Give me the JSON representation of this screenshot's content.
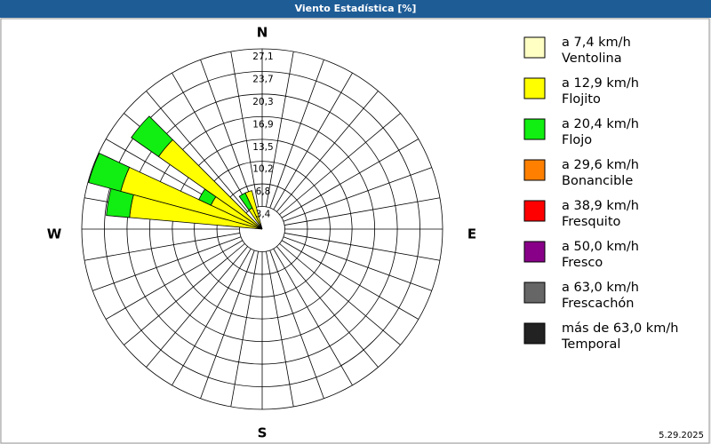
{
  "chart_data": {
    "type": "windrose",
    "title": "Viento Estadística [%]",
    "date": "5.29.2025",
    "compass": [
      "N",
      "E",
      "S",
      "W"
    ],
    "rlim": [
      0,
      27.1
    ],
    "rticks": [
      {
        "value": 3.4,
        "label": "3,4"
      },
      {
        "value": 6.8,
        "label": "6,8"
      },
      {
        "value": 10.2,
        "label": "10,2"
      },
      {
        "value": 13.5,
        "label": "13,5"
      },
      {
        "value": 16.9,
        "label": "16,9"
      },
      {
        "value": 20.3,
        "label": "20,3"
      },
      {
        "value": 23.7,
        "label": "23,7"
      },
      {
        "value": 27.1,
        "label": "27,1"
      }
    ],
    "directions": [
      280,
      290,
      300,
      310,
      330,
      340
    ],
    "series": [
      {
        "name": "a 7,4 km/h",
        "description": "Ventolina",
        "color": "#ffffc4",
        "values": [
          0,
          0,
          0,
          0,
          0,
          0
        ]
      },
      {
        "name": "a 12,9 km/h",
        "description": "Flojito",
        "color": "#ffff00",
        "values": [
          20,
          22,
          8.5,
          19,
          3.5,
          6
        ]
      },
      {
        "name": "a 20,4 km/h",
        "description": "Flojo",
        "color": "#11ee11",
        "values": [
          3.5,
          5,
          2,
          5,
          2.5,
          0
        ]
      },
      {
        "name": "a 29,6 km/h",
        "description": "Bonancible",
        "color": "#ff8000",
        "values": [
          0,
          0,
          0,
          0,
          0,
          0
        ]
      },
      {
        "name": "a 38,9 km/h",
        "description": "Fresquito",
        "color": "#ff0000",
        "values": [
          0,
          0,
          0,
          0,
          0,
          0
        ]
      },
      {
        "name": "a 50,0 km/h",
        "description": "Fresco",
        "color": "#880088",
        "values": [
          0,
          0,
          0,
          0,
          0,
          0
        ]
      },
      {
        "name": "a 63,0 km/h",
        "description": "Frescachón",
        "color": "#666666",
        "values": [
          0,
          0,
          0,
          0,
          0,
          0
        ]
      },
      {
        "name": "más de 63,0 km/h",
        "description": "Temporal",
        "color": "#222222",
        "values": [
          0,
          0,
          0,
          0,
          0,
          0
        ]
      }
    ]
  }
}
